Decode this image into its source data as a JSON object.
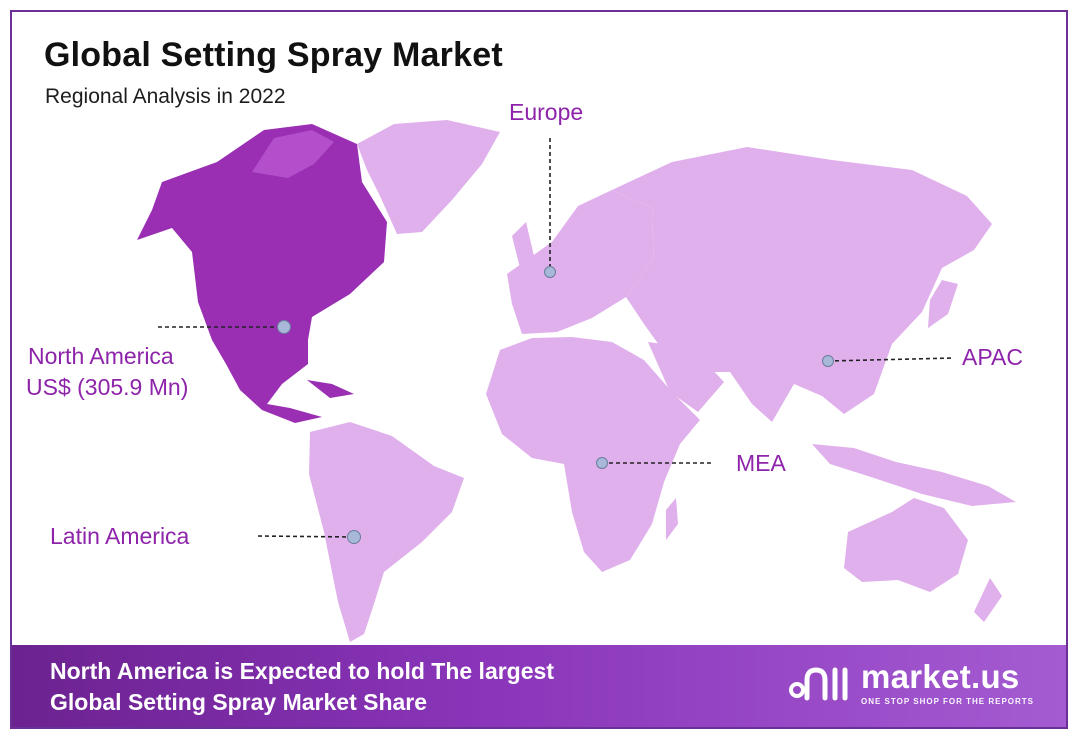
{
  "header": {
    "title": "Global Setting Spray Market",
    "subtitle": "Regional Analysis in 2022"
  },
  "regions": [
    {
      "name": "North America",
      "value": "US$ (305.9 Mn)"
    },
    {
      "name": "Europe"
    },
    {
      "name": "APAC"
    },
    {
      "name": "MEA"
    },
    {
      "name": "Latin America"
    }
  ],
  "banner": {
    "line1": "North America is Expected to hold The largest",
    "line2": "Global Setting Spray Market Share"
  },
  "logo": {
    "name": "market.us",
    "tagline": "ONE STOP SHOP FOR THE REPORTS"
  },
  "colors": {
    "border": "#6c2f98",
    "highlight_region": "#9a2fb4",
    "other_regions": "#e0b0ec",
    "label_text": "#8e24aa",
    "banner_start": "#6c2290",
    "banner_end": "#a45bd1",
    "marker": "#a7b8d8"
  }
}
